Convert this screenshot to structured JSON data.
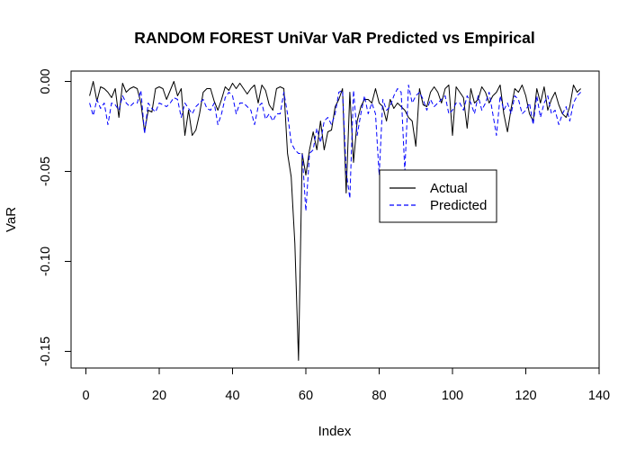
{
  "chart_data": {
    "type": "line",
    "title": "RANDOM FOREST UniVar VaR Predicted vs Empirical",
    "xlabel": "Index",
    "ylabel": "VaR",
    "xlim": [
      0,
      140
    ],
    "ylim": [
      -0.16,
      0.005
    ],
    "x_ticks": [
      0,
      20,
      40,
      60,
      80,
      100,
      120,
      140
    ],
    "y_ticks": [
      0.0,
      -0.05,
      -0.1,
      -0.15
    ],
    "y_tick_labels": [
      "0.00",
      "-0.05",
      "-0.10",
      "-0.15"
    ],
    "grid": false,
    "legend_position": "center-right",
    "series": [
      {
        "name": "Actual",
        "color": "#000000",
        "dash": "solid",
        "x": [
          1,
          2,
          3,
          4,
          5,
          6,
          7,
          8,
          9,
          10,
          11,
          12,
          13,
          14,
          15,
          16,
          17,
          18,
          19,
          20,
          21,
          22,
          23,
          24,
          25,
          26,
          27,
          28,
          29,
          30,
          31,
          32,
          33,
          34,
          35,
          36,
          37,
          38,
          39,
          40,
          41,
          42,
          43,
          44,
          45,
          46,
          47,
          48,
          49,
          50,
          51,
          52,
          53,
          54,
          55,
          56,
          57,
          58,
          59,
          60,
          61,
          62,
          63,
          64,
          65,
          66,
          67,
          68,
          69,
          70,
          71,
          72,
          73,
          74,
          75,
          76,
          77,
          78,
          79,
          80,
          81,
          82,
          83,
          84,
          85,
          86,
          87,
          88,
          89,
          90,
          91,
          92,
          93,
          94,
          95,
          96,
          97,
          98,
          99,
          100,
          101,
          102,
          103,
          104,
          105,
          106,
          107,
          108,
          109,
          110,
          111,
          112,
          113,
          114,
          115,
          116,
          117,
          118,
          119,
          120,
          121,
          122,
          123,
          124,
          125,
          126,
          127,
          128,
          129,
          130,
          131,
          132,
          133,
          134,
          135
        ],
        "values": [
          -0.008,
          0.0,
          -0.011,
          -0.003,
          -0.004,
          -0.006,
          -0.009,
          -0.004,
          -0.02,
          -0.001,
          -0.006,
          -0.004,
          -0.003,
          -0.004,
          -0.012,
          -0.028,
          -0.016,
          -0.017,
          -0.004,
          -0.003,
          -0.004,
          -0.01,
          -0.005,
          0.0,
          -0.008,
          -0.004,
          -0.03,
          -0.016,
          -0.03,
          -0.027,
          -0.018,
          -0.006,
          -0.004,
          -0.004,
          -0.011,
          -0.016,
          -0.01,
          -0.003,
          -0.005,
          -0.001,
          -0.004,
          -0.001,
          -0.004,
          -0.007,
          -0.004,
          -0.002,
          -0.012,
          -0.002,
          -0.005,
          -0.013,
          -0.016,
          -0.004,
          -0.003,
          -0.004,
          -0.04,
          -0.053,
          -0.09,
          -0.155,
          -0.04,
          -0.052,
          -0.038,
          -0.028,
          -0.038,
          -0.022,
          -0.038,
          -0.028,
          -0.027,
          -0.014,
          -0.01,
          -0.004,
          -0.062,
          -0.006,
          -0.045,
          -0.022,
          -0.014,
          -0.01,
          -0.01,
          -0.012,
          -0.004,
          -0.012,
          -0.014,
          -0.022,
          -0.01,
          -0.015,
          -0.012,
          -0.014,
          -0.016,
          -0.02,
          -0.022,
          -0.036,
          -0.004,
          -0.013,
          -0.014,
          -0.006,
          -0.003,
          -0.006,
          -0.012,
          -0.004,
          -0.002,
          -0.03,
          -0.003,
          -0.006,
          -0.009,
          -0.026,
          -0.004,
          -0.012,
          -0.01,
          -0.003,
          -0.006,
          -0.012,
          -0.008,
          -0.006,
          -0.002,
          -0.018,
          -0.028,
          -0.015,
          -0.004,
          -0.006,
          -0.002,
          -0.008,
          -0.018,
          -0.022,
          -0.004,
          -0.012,
          -0.003,
          -0.016,
          -0.01,
          -0.006,
          -0.013,
          -0.018,
          -0.02,
          -0.014,
          -0.002,
          -0.006,
          -0.004
        ]
      },
      {
        "name": "Predicted",
        "color": "#0000ff",
        "dash": "dashed",
        "x": [
          1,
          2,
          3,
          4,
          5,
          6,
          7,
          8,
          9,
          10,
          11,
          12,
          13,
          14,
          15,
          16,
          17,
          18,
          19,
          20,
          21,
          22,
          23,
          24,
          25,
          26,
          27,
          28,
          29,
          30,
          31,
          32,
          33,
          34,
          35,
          36,
          37,
          38,
          39,
          40,
          41,
          42,
          43,
          44,
          45,
          46,
          47,
          48,
          49,
          50,
          51,
          52,
          53,
          54,
          55,
          56,
          57,
          58,
          59,
          60,
          61,
          62,
          63,
          64,
          65,
          66,
          67,
          68,
          69,
          70,
          71,
          72,
          73,
          74,
          75,
          76,
          77,
          78,
          79,
          80,
          81,
          82,
          83,
          84,
          85,
          86,
          87,
          88,
          89,
          90,
          91,
          92,
          93,
          94,
          95,
          96,
          97,
          98,
          99,
          100,
          101,
          102,
          103,
          104,
          105,
          106,
          107,
          108,
          109,
          110,
          111,
          112,
          113,
          114,
          115,
          116,
          117,
          118,
          119,
          120,
          121,
          122,
          123,
          124,
          125,
          126,
          127,
          128,
          129,
          130,
          131,
          132,
          133,
          134,
          135
        ],
        "values": [
          -0.012,
          -0.019,
          -0.01,
          -0.015,
          -0.012,
          -0.024,
          -0.012,
          -0.013,
          -0.016,
          -0.008,
          -0.012,
          -0.014,
          -0.012,
          -0.012,
          -0.005,
          -0.029,
          -0.012,
          -0.015,
          -0.017,
          -0.012,
          -0.013,
          -0.014,
          -0.012,
          -0.009,
          -0.01,
          -0.02,
          -0.012,
          -0.015,
          -0.018,
          -0.014,
          -0.012,
          -0.01,
          -0.015,
          -0.016,
          -0.012,
          -0.024,
          -0.018,
          -0.009,
          -0.006,
          -0.008,
          -0.018,
          -0.012,
          -0.012,
          -0.014,
          -0.016,
          -0.024,
          -0.014,
          -0.012,
          -0.021,
          -0.018,
          -0.022,
          -0.018,
          -0.018,
          -0.006,
          -0.018,
          -0.034,
          -0.038,
          -0.04,
          -0.04,
          -0.072,
          -0.04,
          -0.038,
          -0.026,
          -0.034,
          -0.022,
          -0.02,
          -0.024,
          -0.018,
          -0.006,
          -0.005,
          -0.05,
          -0.065,
          -0.005,
          -0.03,
          -0.018,
          -0.008,
          -0.018,
          -0.012,
          -0.018,
          -0.052,
          -0.01,
          -0.016,
          -0.014,
          -0.008,
          -0.004,
          -0.006,
          -0.05,
          -0.002,
          -0.012,
          -0.008,
          -0.006,
          -0.01,
          -0.016,
          -0.01,
          -0.014,
          -0.012,
          -0.01,
          -0.008,
          -0.018,
          -0.016,
          -0.012,
          -0.012,
          -0.016,
          -0.008,
          -0.012,
          -0.018,
          -0.008,
          -0.016,
          -0.012,
          -0.006,
          -0.018,
          -0.03,
          -0.008,
          -0.016,
          -0.012,
          -0.018,
          -0.008,
          -0.01,
          -0.018,
          -0.016,
          -0.012,
          -0.024,
          -0.008,
          -0.02,
          -0.012,
          -0.008,
          -0.018,
          -0.016,
          -0.024,
          -0.018,
          -0.014,
          -0.022,
          -0.012,
          -0.008,
          -0.006
        ]
      }
    ]
  }
}
